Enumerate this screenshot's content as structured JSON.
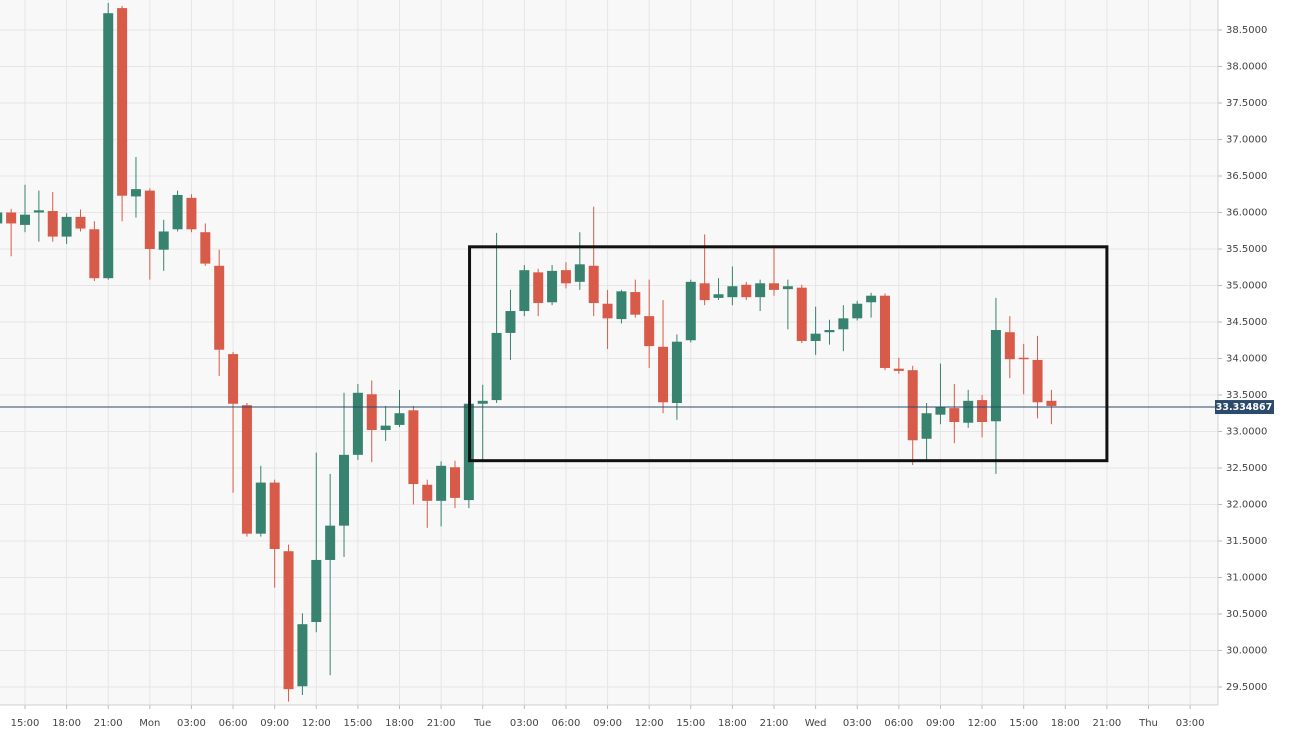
{
  "chart_data": {
    "type": "candlestick",
    "x": [
      -2,
      -1,
      0,
      1,
      2,
      3,
      4,
      5,
      6,
      7,
      8,
      9,
      10,
      11,
      12,
      13,
      14,
      15,
      16,
      17,
      18,
      19,
      20,
      21,
      22,
      23,
      24,
      25,
      26,
      27,
      28,
      29,
      30,
      31,
      32,
      33,
      34,
      35,
      36,
      37,
      38,
      39,
      40,
      41,
      42,
      43,
      44,
      45,
      46,
      47,
      48,
      49,
      50,
      51,
      52,
      53,
      54,
      55,
      56,
      57,
      58,
      59,
      60,
      61,
      62,
      63,
      64,
      65,
      66,
      67,
      68,
      69,
      70,
      71,
      72,
      73,
      74
    ],
    "open": [
      35.85,
      36.0,
      35.83,
      36.0,
      36.02,
      35.67,
      35.94,
      35.77,
      35.1,
      38.8,
      36.22,
      36.3,
      35.49,
      35.77,
      36.2,
      35.73,
      35.27,
      34.06,
      33.36,
      31.6,
      32.3,
      31.36,
      29.51,
      30.39,
      31.24,
      31.71,
      32.68,
      33.51,
      33.02,
      33.09,
      33.29,
      32.27,
      32.05,
      32.51,
      32.06,
      33.38,
      33.43,
      34.35,
      34.65,
      35.18,
      34.77,
      35.21,
      35.05,
      35.27,
      34.75,
      34.54,
      34.91,
      34.58,
      34.16,
      33.39,
      34.25,
      35.03,
      34.83,
      34.84,
      35.01,
      34.84,
      35.03,
      34.95,
      34.97,
      34.24,
      34.36,
      34.4,
      34.55,
      34.77,
      34.86,
      33.86,
      33.84,
      32.9,
      33.23,
      33.32,
      33.12,
      33.43,
      33.14,
      34.36,
      34.01,
      33.98,
      33.42
    ],
    "high": [
      36.05,
      36.05,
      36.38,
      36.3,
      36.28,
      35.99,
      36.04,
      35.88,
      38.87,
      38.83,
      36.76,
      36.33,
      35.9,
      36.3,
      36.25,
      35.85,
      35.49,
      34.09,
      33.39,
      32.53,
      32.34,
      31.45,
      30.51,
      32.71,
      32.42,
      33.53,
      33.65,
      33.7,
      33.35,
      33.57,
      33.35,
      32.34,
      32.59,
      32.6,
      33.43,
      33.64,
      35.72,
      34.94,
      35.28,
      35.23,
      35.28,
      35.32,
      35.73,
      36.08,
      34.94,
      34.94,
      35.08,
      35.08,
      34.8,
      34.33,
      35.08,
      35.7,
      35.1,
      35.26,
      35.05,
      35.08,
      35.51,
      35.08,
      35.01,
      34.71,
      34.53,
      34.73,
      34.79,
      34.9,
      34.89,
      34.01,
      33.9,
      33.39,
      33.93,
      33.65,
      33.57,
      33.5,
      34.83,
      34.58,
      34.2,
      34.31,
      33.57
    ],
    "low": [
      35.8,
      35.4,
      35.73,
      35.6,
      35.6,
      35.57,
      35.74,
      35.06,
      35.08,
      35.88,
      35.93,
      35.08,
      35.2,
      35.74,
      35.73,
      35.27,
      33.76,
      32.16,
      31.56,
      31.56,
      30.86,
      29.3,
      29.39,
      30.25,
      29.66,
      31.28,
      32.61,
      32.58,
      32.87,
      33.06,
      32.0,
      31.68,
      31.7,
      31.95,
      31.95,
      32.6,
      33.39,
      33.98,
      34.58,
      34.58,
      34.73,
      34.96,
      34.94,
      34.58,
      34.13,
      34.48,
      34.56,
      33.87,
      33.25,
      33.16,
      34.22,
      34.73,
      34.8,
      34.73,
      34.8,
      34.65,
      34.86,
      34.4,
      34.21,
      34.05,
      34.19,
      34.1,
      34.52,
      34.56,
      33.84,
      33.79,
      32.54,
      32.6,
      33.1,
      32.84,
      33.05,
      32.92,
      32.42,
      33.73,
      33.51,
      33.18,
      33.1
    ],
    "close": [
      36.0,
      35.85,
      35.97,
      36.03,
      35.67,
      35.94,
      35.78,
      35.1,
      38.73,
      36.23,
      36.32,
      35.5,
      35.74,
      36.24,
      35.77,
      35.3,
      34.12,
      33.38,
      31.6,
      32.3,
      31.39,
      29.47,
      30.36,
      31.24,
      31.71,
      32.68,
      33.53,
      33.02,
      33.08,
      33.25,
      32.28,
      32.05,
      32.53,
      32.09,
      33.38,
      33.42,
      34.35,
      34.65,
      35.21,
      34.76,
      35.2,
      35.03,
      35.29,
      34.76,
      34.55,
      34.92,
      34.6,
      34.17,
      33.4,
      34.23,
      35.05,
      34.8,
      34.88,
      34.99,
      34.84,
      35.03,
      34.94,
      34.99,
      34.24,
      34.34,
      34.39,
      34.55,
      34.75,
      34.86,
      33.87,
      33.83,
      32.88,
      33.25,
      33.34,
      33.13,
      33.42,
      33.13,
      34.39,
      33.99,
      33.99,
      33.4,
      33.35
    ],
    "up_color": "#37836f",
    "down_color": "#d85a49",
    "xlim": [
      -1.8025,
      86.01
    ],
    "ylim": [
      29.253,
      38.911
    ],
    "xticks": [
      {
        "value": 0,
        "label": "15:00"
      },
      {
        "value": 3,
        "label": "18:00"
      },
      {
        "value": 6,
        "label": "21:00"
      },
      {
        "value": 9,
        "label": "Mon"
      },
      {
        "value": 12,
        "label": "03:00"
      },
      {
        "value": 15,
        "label": "06:00"
      },
      {
        "value": 18,
        "label": "09:00"
      },
      {
        "value": 21,
        "label": "12:00"
      },
      {
        "value": 24,
        "label": "15:00"
      },
      {
        "value": 27,
        "label": "18:00"
      },
      {
        "value": 30,
        "label": "21:00"
      },
      {
        "value": 33,
        "label": "Tue"
      },
      {
        "value": 36,
        "label": "03:00"
      },
      {
        "value": 39,
        "label": "06:00"
      },
      {
        "value": 42,
        "label": "09:00"
      },
      {
        "value": 45,
        "label": "12:00"
      },
      {
        "value": 48,
        "label": "15:00"
      },
      {
        "value": 51,
        "label": "18:00"
      },
      {
        "value": 54,
        "label": "21:00"
      },
      {
        "value": 57,
        "label": "Wed"
      },
      {
        "value": 60,
        "label": "03:00"
      },
      {
        "value": 63,
        "label": "06:00"
      },
      {
        "value": 66,
        "label": "09:00"
      },
      {
        "value": 69,
        "label": "12:00"
      },
      {
        "value": 72,
        "label": "15:00"
      },
      {
        "value": 75,
        "label": "18:00"
      },
      {
        "value": 78,
        "label": "21:00"
      },
      {
        "value": 81,
        "label": "Thu"
      },
      {
        "value": 84,
        "label": "03:00"
      }
    ],
    "yticks": [
      {
        "value": 29.5,
        "label": "29.5000"
      },
      {
        "value": 30,
        "label": "30.0000"
      },
      {
        "value": 30.5,
        "label": "30.5000"
      },
      {
        "value": 31,
        "label": "31.0000"
      },
      {
        "value": 31.5,
        "label": "31.5000"
      },
      {
        "value": 32,
        "label": "32.0000"
      },
      {
        "value": 32.5,
        "label": "32.5000"
      },
      {
        "value": 33,
        "label": "33.0000"
      },
      {
        "value": 33.5,
        "label": "33.5000"
      },
      {
        "value": 34,
        "label": "34.0000"
      },
      {
        "value": 34.5,
        "label": "34.5000"
      },
      {
        "value": 35,
        "label": "35.0000"
      },
      {
        "value": 35.5,
        "label": "35.5000"
      },
      {
        "value": 36,
        "label": "36.0000"
      },
      {
        "value": 36.5,
        "label": "36.5000"
      },
      {
        "value": 37,
        "label": "37.0000"
      },
      {
        "value": 37.5,
        "label": "37.5000"
      },
      {
        "value": 38,
        "label": "38.0000"
      },
      {
        "value": 38.5,
        "label": "38.5000"
      }
    ],
    "grid": true,
    "last_price": 33.334867,
    "last_price_color": "#2c4a6b",
    "box": {
      "x": [
        32.05,
        78.0
      ],
      "y": [
        32.6,
        35.53
      ]
    }
  }
}
